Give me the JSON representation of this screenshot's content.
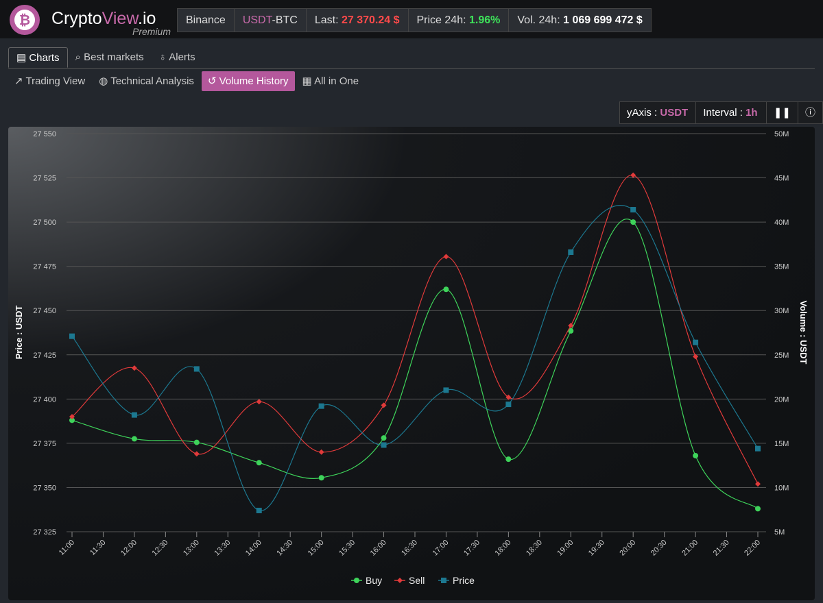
{
  "header": {
    "brand_main": "Crypto",
    "brand_accent": "View",
    "brand_tail": ".io",
    "brand_sub": "Premium",
    "exchange": "Binance",
    "pair_base": "USDT",
    "pair_quote": "-BTC",
    "last_label": "Last:",
    "last_value": "27 370.24 $",
    "change_label": "Price 24h:",
    "change_value": "1.96%",
    "volume_label": "Vol. 24h:",
    "volume_value": "1 069 699 472 $"
  },
  "tabs": [
    "Charts",
    "Best markets",
    "Alerts"
  ],
  "subtabs": [
    "Trading View",
    "Technical Analysis",
    "Volume History",
    "All in One"
  ],
  "controls": {
    "yaxis_label": "yAxis :",
    "yaxis_value": "USDT",
    "interval_label": "Interval :",
    "interval_value": "1h"
  },
  "chart_data": {
    "type": "line",
    "ylabel": "Price : USDT",
    "y2label": "Volume : USDT",
    "x": [
      11,
      12,
      13,
      14,
      15,
      16,
      17,
      18,
      19,
      20,
      21,
      22
    ],
    "xlim": [
      11,
      22
    ],
    "xticks": [
      {
        "value": 11,
        "label": "11:00"
      },
      {
        "value": 11.5,
        "label": "11:30"
      },
      {
        "value": 12,
        "label": "12:00"
      },
      {
        "value": 12.5,
        "label": "12:30"
      },
      {
        "value": 13,
        "label": "13:00"
      },
      {
        "value": 13.5,
        "label": "13:30"
      },
      {
        "value": 14,
        "label": "14:00"
      },
      {
        "value": 14.5,
        "label": "14:30"
      },
      {
        "value": 15,
        "label": "15:00"
      },
      {
        "value": 15.5,
        "label": "15:30"
      },
      {
        "value": 16,
        "label": "16:00"
      },
      {
        "value": 16.5,
        "label": "16:30"
      },
      {
        "value": 17,
        "label": "17:00"
      },
      {
        "value": 17.5,
        "label": "17:30"
      },
      {
        "value": 18,
        "label": "18:00"
      },
      {
        "value": 18.5,
        "label": "18:30"
      },
      {
        "value": 19,
        "label": "19:00"
      },
      {
        "value": 19.5,
        "label": "19:30"
      },
      {
        "value": 20,
        "label": "20:00"
      },
      {
        "value": 20.5,
        "label": "20:30"
      },
      {
        "value": 21,
        "label": "21:00"
      },
      {
        "value": 21.5,
        "label": "21:30"
      },
      {
        "value": 22,
        "label": "22:00"
      }
    ],
    "ylim": [
      27325,
      27550
    ],
    "yticks": [
      {
        "value": 27325,
        "label": "27 325"
      },
      {
        "value": 27350,
        "label": "27 350"
      },
      {
        "value": 27375,
        "label": "27 375"
      },
      {
        "value": 27400,
        "label": "27 400"
      },
      {
        "value": 27425,
        "label": "27 425"
      },
      {
        "value": 27450,
        "label": "27 450"
      },
      {
        "value": 27475,
        "label": "27 475"
      },
      {
        "value": 27500,
        "label": "27 500"
      },
      {
        "value": 27525,
        "label": "27 525"
      },
      {
        "value": 27550,
        "label": "27 550"
      }
    ],
    "y2lim": [
      5000000,
      50000000
    ],
    "y2ticks": [
      {
        "value": 5000000,
        "label": "5M"
      },
      {
        "value": 10000000,
        "label": "10M"
      },
      {
        "value": 15000000,
        "label": "15M"
      },
      {
        "value": 20000000,
        "label": "20M"
      },
      {
        "value": 25000000,
        "label": "25M"
      },
      {
        "value": 30000000,
        "label": "30M"
      },
      {
        "value": 35000000,
        "label": "35M"
      },
      {
        "value": 40000000,
        "label": "40M"
      },
      {
        "value": 45000000,
        "label": "45M"
      },
      {
        "value": 50000000,
        "label": "50M"
      }
    ],
    "grid": true,
    "series": [
      {
        "name": "Buy",
        "color": "#3ed35a",
        "marker": "circle",
        "axis": "y2",
        "values": [
          17600000,
          15500000,
          15100000,
          12800000,
          11100000,
          15600000,
          32400000,
          13200000,
          27700000,
          40000000,
          13600000,
          7600000
        ]
      },
      {
        "name": "Sell",
        "color": "#e03a3a",
        "marker": "diamond",
        "axis": "y2",
        "values": [
          18000000,
          23500000,
          13800000,
          19700000,
          14000000,
          19300000,
          36100000,
          20200000,
          28300000,
          45300000,
          24800000,
          10400000
        ]
      },
      {
        "name": "Price",
        "color": "#1c7890",
        "marker": "square",
        "values": [
          27435.5,
          27391,
          27417,
          27337,
          27396,
          27374,
          27405,
          27397,
          27483,
          27507,
          27432,
          27372
        ]
      }
    ]
  }
}
